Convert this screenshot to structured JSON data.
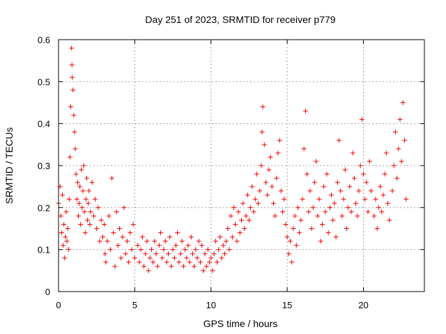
{
  "chart_data": {
    "type": "scatter",
    "title": "Day 251 of 2023, SRMTID for receiver p779",
    "xlabel": "GPS time / hours",
    "ylabel": "SRMTID / TECUs",
    "xlim": [
      0,
      24
    ],
    "ylim": [
      0,
      0.6
    ],
    "xticks": [
      0,
      5,
      10,
      15,
      20
    ],
    "xtick_labels": [
      "0",
      "5",
      "10",
      "15",
      "20"
    ],
    "yticks": [
      0,
      0.1,
      0.2,
      0.3,
      0.4,
      0.5,
      0.6
    ],
    "ytick_labels": [
      "0",
      "0.1",
      "0.2",
      "0.3",
      "0.4",
      "0.5",
      "0.6"
    ],
    "grid": true,
    "marker": "+",
    "series_color": "#ee0000",
    "series": [
      {
        "name": "SRMTID",
        "points": [
          [
            0.0,
            0.21
          ],
          [
            0.1,
            0.25
          ],
          [
            0.15,
            0.18
          ],
          [
            0.2,
            0.14
          ],
          [
            0.25,
            0.23
          ],
          [
            0.3,
            0.11
          ],
          [
            0.35,
            0.16
          ],
          [
            0.4,
            0.08
          ],
          [
            0.45,
            0.13
          ],
          [
            0.5,
            0.19
          ],
          [
            0.55,
            0.12
          ],
          [
            0.6,
            0.15
          ],
          [
            0.65,
            0.1
          ],
          [
            0.7,
            0.22
          ],
          [
            0.75,
            0.32
          ],
          [
            0.8,
            0.44
          ],
          [
            0.85,
            0.58
          ],
          [
            0.88,
            0.54
          ],
          [
            0.9,
            0.51
          ],
          [
            0.95,
            0.48
          ],
          [
            1.0,
            0.42
          ],
          [
            1.05,
            0.38
          ],
          [
            1.1,
            0.34
          ],
          [
            1.15,
            0.28
          ],
          [
            1.2,
            0.22
          ],
          [
            1.25,
            0.26
          ],
          [
            1.3,
            0.18
          ],
          [
            1.35,
            0.21
          ],
          [
            1.4,
            0.25
          ],
          [
            1.45,
            0.16
          ],
          [
            1.5,
            0.29
          ],
          [
            1.55,
            0.2
          ],
          [
            1.6,
            0.24
          ],
          [
            1.65,
            0.3
          ],
          [
            1.7,
            0.19
          ],
          [
            1.75,
            0.14
          ],
          [
            1.8,
            0.22
          ],
          [
            1.85,
            0.27
          ],
          [
            1.9,
            0.17
          ],
          [
            1.95,
            0.21
          ],
          [
            2.0,
            0.24
          ],
          [
            2.05,
            0.16
          ],
          [
            2.1,
            0.19
          ],
          [
            2.2,
            0.26
          ],
          [
            2.3,
            0.18
          ],
          [
            2.4,
            0.22
          ],
          [
            2.5,
            0.15
          ],
          [
            2.6,
            0.2
          ],
          [
            2.7,
            0.12
          ],
          [
            2.8,
            0.17
          ],
          [
            2.9,
            0.13
          ],
          [
            3.0,
            0.16
          ],
          [
            3.05,
            0.09
          ],
          [
            3.1,
            0.07
          ],
          [
            3.2,
            0.12
          ],
          [
            3.3,
            0.18
          ],
          [
            3.4,
            0.1
          ],
          [
            3.5,
            0.27
          ],
          [
            3.6,
            0.14
          ],
          [
            3.7,
            0.06
          ],
          [
            3.8,
            0.19
          ],
          [
            3.9,
            0.11
          ],
          [
            4.0,
            0.15
          ],
          [
            4.1,
            0.08
          ],
          [
            4.2,
            0.13
          ],
          [
            4.3,
            0.2
          ],
          [
            4.4,
            0.09
          ],
          [
            4.5,
            0.12
          ],
          [
            4.6,
            0.07
          ],
          [
            4.7,
            0.14
          ],
          [
            4.8,
            0.1
          ],
          [
            4.9,
            0.16
          ],
          [
            5.0,
            0.08
          ],
          [
            5.2,
            0.11
          ],
          [
            5.3,
            0.07
          ],
          [
            5.4,
            0.1
          ],
          [
            5.5,
            0.13
          ],
          [
            5.6,
            0.06
          ],
          [
            5.7,
            0.09
          ],
          [
            5.8,
            0.12
          ],
          [
            5.9,
            0.05
          ],
          [
            6.0,
            0.08
          ],
          [
            6.1,
            0.1
          ],
          [
            6.2,
            0.07
          ],
          [
            6.3,
            0.12
          ],
          [
            6.4,
            0.09
          ],
          [
            6.5,
            0.06
          ],
          [
            6.6,
            0.11
          ],
          [
            6.7,
            0.14
          ],
          [
            6.8,
            0.08
          ],
          [
            6.9,
            0.1
          ],
          [
            7.0,
            0.12
          ],
          [
            7.1,
            0.07
          ],
          [
            7.2,
            0.09
          ],
          [
            7.3,
            0.13
          ],
          [
            7.4,
            0.06
          ],
          [
            7.5,
            0.1
          ],
          [
            7.6,
            0.08
          ],
          [
            7.7,
            0.11
          ],
          [
            7.8,
            0.14
          ],
          [
            7.9,
            0.07
          ],
          [
            8.0,
            0.09
          ],
          [
            8.1,
            0.12
          ],
          [
            8.2,
            0.06
          ],
          [
            8.3,
            0.1
          ],
          [
            8.4,
            0.08
          ],
          [
            8.5,
            0.11
          ],
          [
            8.6,
            0.07
          ],
          [
            8.7,
            0.13
          ],
          [
            8.8,
            0.09
          ],
          [
            8.9,
            0.06
          ],
          [
            9.0,
            0.1
          ],
          [
            9.1,
            0.08
          ],
          [
            9.2,
            0.12
          ],
          [
            9.3,
            0.07
          ],
          [
            9.4,
            0.11
          ],
          [
            9.5,
            0.05
          ],
          [
            9.6,
            0.09
          ],
          [
            9.7,
            0.06
          ],
          [
            9.8,
            0.1
          ],
          [
            9.9,
            0.07
          ],
          [
            10.0,
            0.08
          ],
          [
            10.1,
            0.05
          ],
          [
            10.2,
            0.09
          ],
          [
            10.3,
            0.12
          ],
          [
            10.4,
            0.07
          ],
          [
            10.5,
            0.1
          ],
          [
            10.6,
            0.13
          ],
          [
            10.7,
            0.08
          ],
          [
            10.8,
            0.11
          ],
          [
            10.9,
            0.09
          ],
          [
            11.0,
            0.12
          ],
          [
            11.1,
            0.15
          ],
          [
            11.2,
            0.1
          ],
          [
            11.3,
            0.18
          ],
          [
            11.4,
            0.13
          ],
          [
            11.5,
            0.2
          ],
          [
            11.6,
            0.16
          ],
          [
            11.7,
            0.12
          ],
          [
            11.8,
            0.19
          ],
          [
            11.9,
            0.14
          ],
          [
            12.0,
            0.17
          ],
          [
            12.1,
            0.21
          ],
          [
            12.2,
            0.15
          ],
          [
            12.3,
            0.18
          ],
          [
            12.4,
            0.23
          ],
          [
            12.5,
            0.17
          ],
          [
            12.6,
            0.2
          ],
          [
            12.7,
            0.25
          ],
          [
            12.8,
            0.19
          ],
          [
            12.9,
            0.22
          ],
          [
            13.0,
            0.28
          ],
          [
            13.1,
            0.21
          ],
          [
            13.2,
            0.24
          ],
          [
            13.3,
            0.3
          ],
          [
            13.35,
            0.38
          ],
          [
            13.4,
            0.44
          ],
          [
            13.5,
            0.35
          ],
          [
            13.6,
            0.26
          ],
          [
            13.7,
            0.23
          ],
          [
            13.8,
            0.29
          ],
          [
            13.9,
            0.32
          ],
          [
            14.0,
            0.25
          ],
          [
            14.1,
            0.21
          ],
          [
            14.2,
            0.18
          ],
          [
            14.3,
            0.27
          ],
          [
            14.4,
            0.33
          ],
          [
            14.5,
            0.36
          ],
          [
            14.6,
            0.24
          ],
          [
            14.7,
            0.19
          ],
          [
            14.8,
            0.22
          ],
          [
            14.9,
            0.16
          ],
          [
            15.0,
            0.13
          ],
          [
            15.1,
            0.09
          ],
          [
            15.2,
            0.12
          ],
          [
            15.3,
            0.07
          ],
          [
            15.4,
            0.15
          ],
          [
            15.5,
            0.18
          ],
          [
            15.6,
            0.11
          ],
          [
            15.7,
            0.2
          ],
          [
            15.8,
            0.14
          ],
          [
            15.9,
            0.17
          ],
          [
            16.0,
            0.22
          ],
          [
            16.1,
            0.34
          ],
          [
            16.2,
            0.43
          ],
          [
            16.3,
            0.28
          ],
          [
            16.4,
            0.19
          ],
          [
            16.5,
            0.24
          ],
          [
            16.6,
            0.15
          ],
          [
            16.7,
            0.2
          ],
          [
            16.8,
            0.26
          ],
          [
            16.9,
            0.31
          ],
          [
            17.0,
            0.18
          ],
          [
            17.1,
            0.22
          ],
          [
            17.2,
            0.12
          ],
          [
            17.3,
            0.16
          ],
          [
            17.4,
            0.25
          ],
          [
            17.5,
            0.19
          ],
          [
            17.6,
            0.28
          ],
          [
            17.7,
            0.14
          ],
          [
            17.8,
            0.2
          ],
          [
            17.9,
            0.23
          ],
          [
            18.0,
            0.17
          ],
          [
            18.1,
            0.21
          ],
          [
            18.2,
            0.13
          ],
          [
            18.3,
            0.26
          ],
          [
            18.4,
            0.36
          ],
          [
            18.5,
            0.24
          ],
          [
            18.6,
            0.18
          ],
          [
            18.7,
            0.22
          ],
          [
            18.8,
            0.29
          ],
          [
            18.9,
            0.15
          ],
          [
            19.0,
            0.2
          ],
          [
            19.1,
            0.25
          ],
          [
            19.2,
            0.19
          ],
          [
            19.3,
            0.33
          ],
          [
            19.4,
            0.27
          ],
          [
            19.5,
            0.21
          ],
          [
            19.6,
            0.18
          ],
          [
            19.7,
            0.24
          ],
          [
            19.8,
            0.3
          ],
          [
            19.9,
            0.41
          ],
          [
            20.0,
            0.28
          ],
          [
            20.1,
            0.22
          ],
          [
            20.2,
            0.26
          ],
          [
            20.3,
            0.19
          ],
          [
            20.4,
            0.31
          ],
          [
            20.5,
            0.24
          ],
          [
            20.7,
            0.18
          ],
          [
            20.8,
            0.22
          ],
          [
            20.9,
            0.15
          ],
          [
            21.0,
            0.2
          ],
          [
            21.1,
            0.25
          ],
          [
            21.2,
            0.19
          ],
          [
            21.3,
            0.23
          ],
          [
            21.4,
            0.28
          ],
          [
            21.5,
            0.33
          ],
          [
            21.6,
            0.21
          ],
          [
            21.7,
            0.17
          ],
          [
            21.9,
            0.24
          ],
          [
            22.0,
            0.3
          ],
          [
            22.1,
            0.38
          ],
          [
            22.2,
            0.27
          ],
          [
            22.3,
            0.34
          ],
          [
            22.4,
            0.41
          ],
          [
            22.5,
            0.31
          ],
          [
            22.6,
            0.45
          ],
          [
            22.7,
            0.36
          ],
          [
            22.8,
            0.22
          ]
        ]
      }
    ]
  }
}
